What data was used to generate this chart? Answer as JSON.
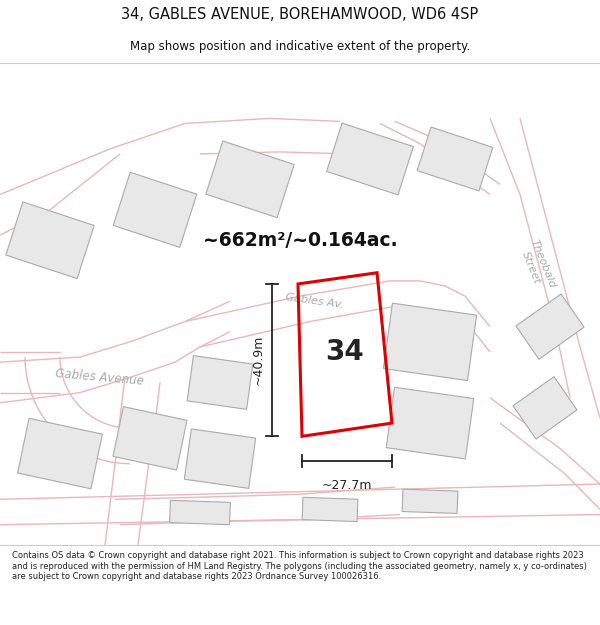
{
  "title": "34, GABLES AVENUE, BOREHAMWOOD, WD6 4SP",
  "subtitle": "Map shows position and indicative extent of the property.",
  "area_text": "~662m²/~0.164ac.",
  "width_label": "~27.7m",
  "height_label": "~40.9m",
  "number_label": "34",
  "footer_text": "Contains OS data © Crown copyright and database right 2021. This information is subject to Crown copyright and database rights 2023 and is reproduced with the permission of HM Land Registry. The polygons (including the associated geometry, namely x, y co-ordinates) are subject to Crown copyright and database rights 2023 Ordnance Survey 100026316.",
  "bg_color": "#ffffff",
  "map_bg": "#ffffff",
  "road_color": "#e8b8b8",
  "plot_line_color": "#dd0000",
  "building_fill": "#e8e8e8",
  "building_edge": "#aaaaaa",
  "text_color": "#222222",
  "title_color": "#111111",
  "road_label_color": "#aaaaaa",
  "dim_color": "#222222"
}
